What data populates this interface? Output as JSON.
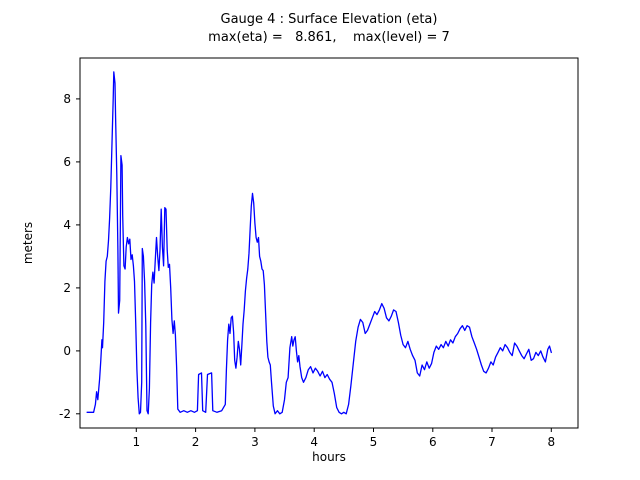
{
  "figure": {
    "title": "Gauge 4 : Surface Elevation (eta)",
    "subtitle": "max(eta) =   8.861,    max(level) = 7",
    "xlabel": "hours",
    "ylabel": "meters",
    "background": "#ffffff",
    "axes_color": "#000000"
  },
  "chart_data": {
    "type": "line",
    "title": "Gauge 4 : Surface Elevation (eta)",
    "subtitle": "max(eta) =   8.861,    max(level) = 7",
    "xlabel": "hours",
    "ylabel": "meters",
    "xlim": [
      0.05,
      8.45
    ],
    "ylim": [
      -2.45,
      9.3
    ],
    "xticks": [
      1,
      2,
      3,
      4,
      5,
      6,
      7,
      8
    ],
    "yticks": [
      -2,
      0,
      2,
      4,
      6,
      8
    ],
    "grid": false,
    "legend": "none",
    "max_eta": 8.861,
    "max_level": 7,
    "series": [
      {
        "name": "eta",
        "color": "#0000ff",
        "points": [
          [
            0.17,
            -1.95
          ],
          [
            0.28,
            -1.95
          ],
          [
            0.31,
            -1.7
          ],
          [
            0.33,
            -1.3
          ],
          [
            0.35,
            -1.55
          ],
          [
            0.38,
            -0.9
          ],
          [
            0.4,
            -0.3
          ],
          [
            0.42,
            0.35
          ],
          [
            0.43,
            0.1
          ],
          [
            0.45,
            0.9
          ],
          [
            0.47,
            2.2
          ],
          [
            0.49,
            2.85
          ],
          [
            0.51,
            3.0
          ],
          [
            0.53,
            3.5
          ],
          [
            0.55,
            4.2
          ],
          [
            0.57,
            5.2
          ],
          [
            0.59,
            6.6
          ],
          [
            0.61,
            8.0
          ],
          [
            0.62,
            8.86
          ],
          [
            0.64,
            8.5
          ],
          [
            0.65,
            7.4
          ],
          [
            0.67,
            5.6
          ],
          [
            0.69,
            3.2
          ],
          [
            0.7,
            1.2
          ],
          [
            0.72,
            1.6
          ],
          [
            0.73,
            3.8
          ],
          [
            0.74,
            6.2
          ],
          [
            0.76,
            5.9
          ],
          [
            0.77,
            4.3
          ],
          [
            0.79,
            2.7
          ],
          [
            0.81,
            2.6
          ],
          [
            0.83,
            3.3
          ],
          [
            0.85,
            3.6
          ],
          [
            0.87,
            3.4
          ],
          [
            0.89,
            3.55
          ],
          [
            0.91,
            2.9
          ],
          [
            0.93,
            3.05
          ],
          [
            0.95,
            2.7
          ],
          [
            0.97,
            2.2
          ],
          [
            0.99,
            0.9
          ],
          [
            1.01,
            -0.6
          ],
          [
            1.03,
            -1.5
          ],
          [
            1.05,
            -2.0
          ],
          [
            1.07,
            -1.95
          ],
          [
            1.09,
            -1.0
          ],
          [
            1.1,
            3.25
          ],
          [
            1.12,
            3.0
          ],
          [
            1.14,
            2.2
          ],
          [
            1.16,
            0.8
          ],
          [
            1.18,
            -1.9
          ],
          [
            1.2,
            -2.0
          ],
          [
            1.22,
            -1.2
          ],
          [
            1.24,
            0.9
          ],
          [
            1.26,
            2.1
          ],
          [
            1.28,
            2.5
          ],
          [
            1.3,
            2.15
          ],
          [
            1.32,
            2.9
          ],
          [
            1.34,
            3.6
          ],
          [
            1.36,
            3.0
          ],
          [
            1.38,
            2.55
          ],
          [
            1.4,
            3.2
          ],
          [
            1.42,
            4.5
          ],
          [
            1.44,
            3.3
          ],
          [
            1.46,
            2.7
          ],
          [
            1.48,
            4.55
          ],
          [
            1.5,
            4.5
          ],
          [
            1.52,
            3.2
          ],
          [
            1.54,
            2.65
          ],
          [
            1.56,
            2.75
          ],
          [
            1.58,
            2.0
          ],
          [
            1.6,
            1.0
          ],
          [
            1.62,
            0.55
          ],
          [
            1.64,
            0.95
          ],
          [
            1.66,
            0.5
          ],
          [
            1.68,
            -0.5
          ],
          [
            1.7,
            -1.85
          ],
          [
            1.74,
            -1.95
          ],
          [
            1.8,
            -1.9
          ],
          [
            1.86,
            -1.95
          ],
          [
            1.92,
            -1.9
          ],
          [
            1.98,
            -1.95
          ],
          [
            2.03,
            -1.9
          ],
          [
            2.05,
            -0.75
          ],
          [
            2.1,
            -0.7
          ],
          [
            2.12,
            -1.9
          ],
          [
            2.17,
            -1.95
          ],
          [
            2.2,
            -0.75
          ],
          [
            2.27,
            -0.7
          ],
          [
            2.29,
            -1.9
          ],
          [
            2.36,
            -1.95
          ],
          [
            2.44,
            -1.9
          ],
          [
            2.5,
            -1.7
          ],
          [
            2.52,
            -0.6
          ],
          [
            2.54,
            0.35
          ],
          [
            2.56,
            0.85
          ],
          [
            2.58,
            0.55
          ],
          [
            2.6,
            1.05
          ],
          [
            2.62,
            1.1
          ],
          [
            2.64,
            0.6
          ],
          [
            2.66,
            -0.3
          ],
          [
            2.68,
            -0.55
          ],
          [
            2.7,
            -0.2
          ],
          [
            2.72,
            0.3
          ],
          [
            2.74,
            0.05
          ],
          [
            2.76,
            -0.45
          ],
          [
            2.78,
            0.2
          ],
          [
            2.8,
            0.85
          ],
          [
            2.82,
            1.3
          ],
          [
            2.84,
            1.9
          ],
          [
            2.86,
            2.3
          ],
          [
            2.88,
            2.6
          ],
          [
            2.9,
            3.1
          ],
          [
            2.92,
            3.9
          ],
          [
            2.94,
            4.6
          ],
          [
            2.96,
            5.0
          ],
          [
            2.98,
            4.7
          ],
          [
            3.0,
            4.05
          ],
          [
            3.02,
            3.6
          ],
          [
            3.04,
            3.45
          ],
          [
            3.06,
            3.6
          ],
          [
            3.08,
            3.0
          ],
          [
            3.1,
            2.85
          ],
          [
            3.12,
            2.6
          ],
          [
            3.14,
            2.55
          ],
          [
            3.16,
            2.1
          ],
          [
            3.18,
            1.2
          ],
          [
            3.2,
            0.3
          ],
          [
            3.22,
            -0.2
          ],
          [
            3.24,
            -0.35
          ],
          [
            3.26,
            -0.45
          ],
          [
            3.28,
            -1.0
          ],
          [
            3.31,
            -1.75
          ],
          [
            3.34,
            -2.0
          ],
          [
            3.38,
            -1.9
          ],
          [
            3.42,
            -2.0
          ],
          [
            3.46,
            -1.95
          ],
          [
            3.5,
            -1.55
          ],
          [
            3.53,
            -1.0
          ],
          [
            3.56,
            -0.85
          ],
          [
            3.59,
            0.1
          ],
          [
            3.62,
            0.45
          ],
          [
            3.64,
            0.15
          ],
          [
            3.66,
            0.35
          ],
          [
            3.68,
            0.45
          ],
          [
            3.7,
            0.0
          ],
          [
            3.72,
            -0.35
          ],
          [
            3.74,
            -0.15
          ],
          [
            3.76,
            -0.5
          ],
          [
            3.79,
            -0.85
          ],
          [
            3.82,
            -1.0
          ],
          [
            3.86,
            -0.85
          ],
          [
            3.9,
            -0.6
          ],
          [
            3.94,
            -0.5
          ],
          [
            3.98,
            -0.7
          ],
          [
            4.02,
            -0.55
          ],
          [
            4.06,
            -0.65
          ],
          [
            4.1,
            -0.8
          ],
          [
            4.14,
            -0.65
          ],
          [
            4.18,
            -0.85
          ],
          [
            4.22,
            -0.75
          ],
          [
            4.26,
            -0.9
          ],
          [
            4.3,
            -1.0
          ],
          [
            4.34,
            -1.35
          ],
          [
            4.38,
            -1.8
          ],
          [
            4.42,
            -1.95
          ],
          [
            4.46,
            -2.0
          ],
          [
            4.5,
            -1.95
          ],
          [
            4.54,
            -2.0
          ],
          [
            4.58,
            -1.7
          ],
          [
            4.62,
            -1.1
          ],
          [
            4.66,
            -0.4
          ],
          [
            4.7,
            0.3
          ],
          [
            4.74,
            0.75
          ],
          [
            4.78,
            1.0
          ],
          [
            4.82,
            0.9
          ],
          [
            4.86,
            0.55
          ],
          [
            4.9,
            0.65
          ],
          [
            4.94,
            0.85
          ],
          [
            4.98,
            1.05
          ],
          [
            5.02,
            1.25
          ],
          [
            5.06,
            1.15
          ],
          [
            5.1,
            1.3
          ],
          [
            5.14,
            1.5
          ],
          [
            5.18,
            1.35
          ],
          [
            5.22,
            1.05
          ],
          [
            5.26,
            0.95
          ],
          [
            5.3,
            1.1
          ],
          [
            5.34,
            1.3
          ],
          [
            5.38,
            1.25
          ],
          [
            5.42,
            0.9
          ],
          [
            5.46,
            0.5
          ],
          [
            5.5,
            0.2
          ],
          [
            5.54,
            0.1
          ],
          [
            5.58,
            0.3
          ],
          [
            5.62,
            0.05
          ],
          [
            5.66,
            -0.15
          ],
          [
            5.7,
            -0.3
          ],
          [
            5.74,
            -0.7
          ],
          [
            5.78,
            -0.8
          ],
          [
            5.82,
            -0.45
          ],
          [
            5.86,
            -0.6
          ],
          [
            5.9,
            -0.35
          ],
          [
            5.94,
            -0.55
          ],
          [
            5.98,
            -0.4
          ],
          [
            6.02,
            -0.05
          ],
          [
            6.06,
            0.15
          ],
          [
            6.1,
            0.05
          ],
          [
            6.14,
            0.2
          ],
          [
            6.18,
            0.1
          ],
          [
            6.22,
            0.3
          ],
          [
            6.26,
            0.15
          ],
          [
            6.3,
            0.35
          ],
          [
            6.34,
            0.25
          ],
          [
            6.38,
            0.45
          ],
          [
            6.42,
            0.55
          ],
          [
            6.46,
            0.7
          ],
          [
            6.5,
            0.8
          ],
          [
            6.54,
            0.65
          ],
          [
            6.58,
            0.8
          ],
          [
            6.62,
            0.75
          ],
          [
            6.66,
            0.45
          ],
          [
            6.7,
            0.25
          ],
          [
            6.74,
            0.05
          ],
          [
            6.78,
            -0.2
          ],
          [
            6.82,
            -0.45
          ],
          [
            6.86,
            -0.65
          ],
          [
            6.9,
            -0.7
          ],
          [
            6.94,
            -0.55
          ],
          [
            6.98,
            -0.35
          ],
          [
            7.02,
            -0.45
          ],
          [
            7.06,
            -0.2
          ],
          [
            7.1,
            -0.05
          ],
          [
            7.14,
            0.1
          ],
          [
            7.18,
            0.0
          ],
          [
            7.22,
            0.2
          ],
          [
            7.26,
            0.1
          ],
          [
            7.3,
            -0.05
          ],
          [
            7.34,
            -0.15
          ],
          [
            7.38,
            0.25
          ],
          [
            7.42,
            0.15
          ],
          [
            7.46,
            0.0
          ],
          [
            7.5,
            -0.15
          ],
          [
            7.54,
            -0.25
          ],
          [
            7.58,
            -0.1
          ],
          [
            7.62,
            0.05
          ],
          [
            7.66,
            -0.3
          ],
          [
            7.7,
            -0.25
          ],
          [
            7.74,
            -0.05
          ],
          [
            7.78,
            -0.15
          ],
          [
            7.82,
            0.0
          ],
          [
            7.86,
            -0.2
          ],
          [
            7.9,
            -0.35
          ],
          [
            7.94,
            0.05
          ],
          [
            7.97,
            0.15
          ],
          [
            8.0,
            -0.05
          ]
        ]
      }
    ]
  }
}
